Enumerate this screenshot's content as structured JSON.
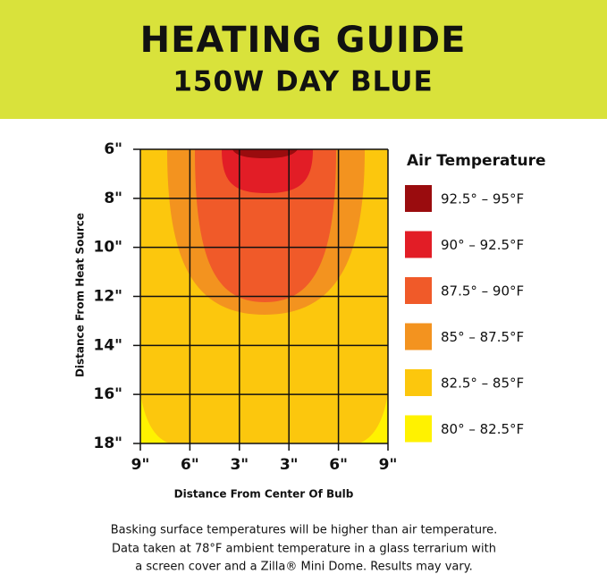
{
  "header": {
    "title": "HEATING GUIDE",
    "subtitle": "150W DAY BLUE"
  },
  "y_axis": {
    "label": "Distance From Heat Source",
    "ticks": [
      "6\"",
      "8\"",
      "10\"",
      "12\"",
      "14\"",
      "16\"",
      "18\""
    ]
  },
  "x_axis": {
    "label": "Distance From Center Of Bulb",
    "ticks": [
      "9\"",
      "6\"",
      "3\"",
      "3\"",
      "6\"",
      "9\""
    ]
  },
  "legend": {
    "title": "Air Temperature",
    "items": [
      {
        "label": "92.5° – 95°F",
        "color": "#9a0c0e"
      },
      {
        "label": "90° – 92.5°F",
        "color": "#e21d26"
      },
      {
        "label": "87.5° – 90°F",
        "color": "#f05a29"
      },
      {
        "label": "85° – 87.5°F",
        "color": "#f3931f"
      },
      {
        "label": "82.5° – 85°F",
        "color": "#fcc70d"
      },
      {
        "label": "80° – 82.5°F",
        "color": "#fff200"
      }
    ]
  },
  "footnote": [
    "Basking surface temperatures will be higher than air temperature.",
    "Data taken at 78°F ambient temperature in a glass terrarium with",
    "a screen cover and a Zilla® Mini Dome. Results may vary."
  ]
}
